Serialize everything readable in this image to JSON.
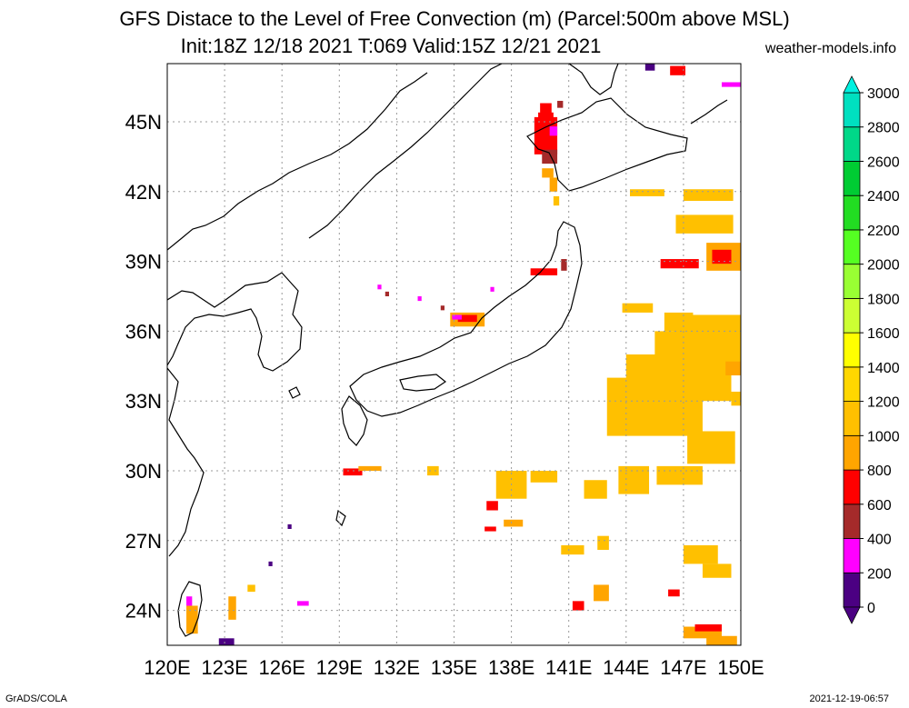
{
  "header": {
    "title": "GFS Distace to the Level of Free Convection (m) (Parcel:500m above MSL)",
    "subtitle": "Init:18Z 12/18 2021 T:069 Valid:15Z 12/21 2021",
    "site": "weather-models.info"
  },
  "footer": {
    "credit": "GrADS/COLA",
    "timestamp": "2021-12-19-06:57"
  },
  "map": {
    "lon_range": [
      120,
      150
    ],
    "lat_range": [
      22.5,
      47.5
    ],
    "lon_labels": [
      "120E",
      "123E",
      "126E",
      "129E",
      "132E",
      "135E",
      "138E",
      "141E",
      "144E",
      "147E",
      "150E"
    ],
    "lat_labels": [
      "24N",
      "27N",
      "30N",
      "33N",
      "36N",
      "39N",
      "42N",
      "45N"
    ],
    "grid": "dotted"
  },
  "colorbar": {
    "labels": [
      "0",
      "200",
      "400",
      "600",
      "800",
      "1000",
      "1200",
      "1400",
      "1600",
      "1800",
      "2000",
      "2200",
      "2400",
      "2600",
      "2800",
      "3000"
    ],
    "colors": [
      "#4b0082",
      "#ff00ff",
      "#a52a2a",
      "#ff0000",
      "#ffa500",
      "#ffc000",
      "#ffd700",
      "#ffff00",
      "#ccff33",
      "#99ff33",
      "#55ff22",
      "#22dd22",
      "#00cc33",
      "#00d888",
      "#00e0c0",
      "#00f0e0"
    ]
  }
}
